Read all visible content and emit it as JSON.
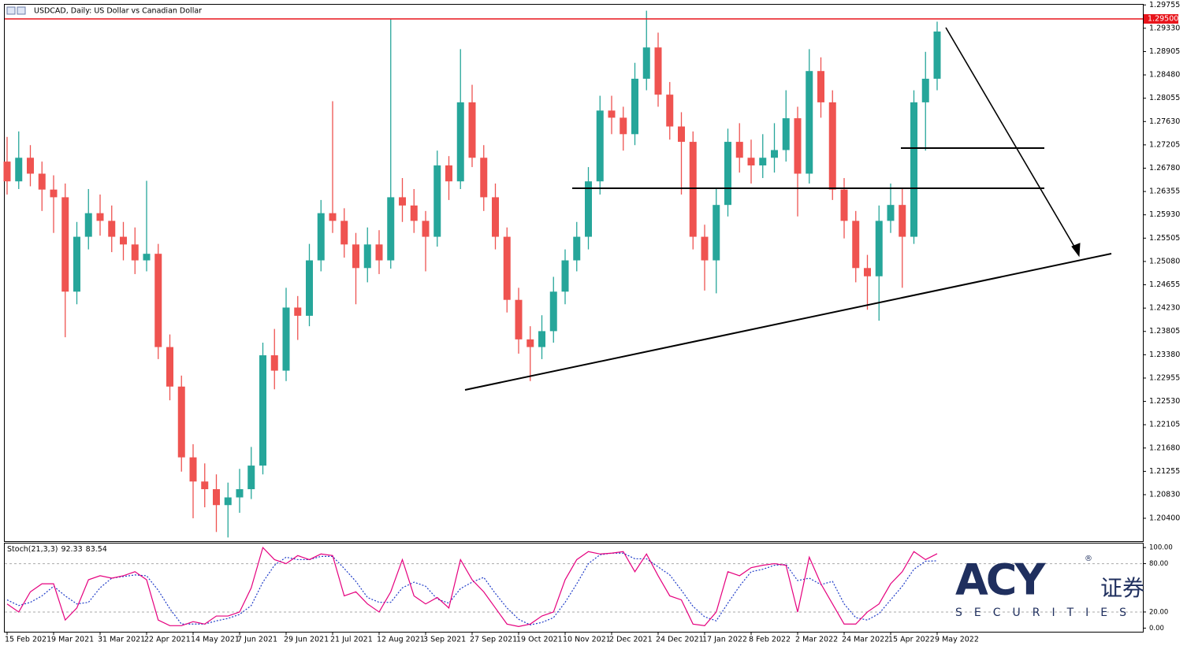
{
  "chart_data": {
    "type": "candlestick",
    "title": "USDCAD, Daily: US Dollar vs Canadian Dollar",
    "categories": [
      "15 Feb 2021",
      null,
      null,
      null,
      "9 Mar 2021",
      null,
      null,
      null,
      "31 Mar 2021",
      null,
      null,
      null,
      "22 Apr 2021",
      null,
      null,
      null,
      "14 May 2021",
      null,
      null,
      null,
      "7 Jun 2021",
      null,
      null,
      null,
      "29 Jun 2021",
      null,
      null,
      null,
      "21 Jul 2021",
      null,
      null,
      null,
      "12 Aug 2021",
      null,
      null,
      null,
      "3 Sep 2021",
      null,
      null,
      null,
      "27 Sep 2021",
      null,
      null,
      null,
      "19 Oct 2021",
      null,
      null,
      null,
      "10 Nov 2021",
      null,
      null,
      null,
      "2 Dec 2021",
      null,
      null,
      null,
      "24 Dec 2021",
      null,
      null,
      null,
      "17 Jan 2022",
      null,
      null,
      null,
      "8 Feb 2022",
      null,
      null,
      null,
      "2 Mar 2022",
      null,
      null,
      null,
      "24 Mar 2022",
      null,
      null,
      null,
      "15 Apr 2022",
      null,
      null,
      null,
      "9 May 2022"
    ],
    "open": [
      1.269,
      1.2654,
      1.2697,
      1.2668,
      1.2639,
      1.2625,
      1.2453,
      1.2553,
      1.2596,
      1.2582,
      1.2553,
      1.2539,
      1.251,
      1.2522,
      1.2352,
      1.228,
      1.2151,
      1.2107,
      1.2093,
      1.2064,
      1.2078,
      1.2093,
      1.2136,
      1.2337,
      1.2309,
      1.2424,
      1.2409,
      1.251,
      1.2596,
      1.2582,
      1.2539,
      1.2496,
      1.2539,
      1.251,
      1.2625,
      1.261,
      1.2582,
      1.2553,
      1.2683,
      1.2654,
      1.2798,
      1.2697,
      1.2625,
      1.2553,
      1.2438,
      1.2366,
      1.2352,
      1.2381,
      1.2453,
      1.251,
      1.2553,
      1.2654,
      1.2783,
      1.277,
      1.274,
      1.2841,
      1.2898,
      1.2812,
      1.2754,
      1.2726,
      1.2553,
      1.251,
      1.2611,
      1.2726,
      1.2697,
      1.2683,
      1.2697,
      1.2711,
      1.2769,
      1.2668,
      1.2855,
      1.2798,
      1.2639,
      1.2582,
      1.2496,
      1.2481,
      1.2582,
      1.2611,
      1.2553,
      1.2798,
      1.2841
    ],
    "high": [
      1.2735,
      1.2745,
      1.272,
      1.269,
      1.2665,
      1.265,
      1.258,
      1.264,
      1.263,
      1.261,
      1.258,
      1.257,
      1.2655,
      1.254,
      1.2375,
      1.23,
      1.2175,
      1.214,
      1.212,
      1.2105,
      1.213,
      1.217,
      1.236,
      1.2385,
      1.246,
      1.2445,
      1.254,
      1.262,
      1.28,
      1.2605,
      1.256,
      1.257,
      1.2565,
      1.295,
      1.266,
      1.264,
      1.26,
      1.271,
      1.27,
      1.2895,
      1.283,
      1.272,
      1.265,
      1.257,
      1.246,
      1.239,
      1.241,
      1.248,
      1.253,
      1.258,
      1.268,
      1.281,
      1.281,
      1.279,
      1.287,
      1.2965,
      1.2925,
      1.2835,
      1.278,
      1.2745,
      1.2575,
      1.264,
      1.275,
      1.276,
      1.273,
      1.274,
      1.276,
      1.282,
      1.279,
      1.2895,
      1.288,
      1.282,
      1.266,
      1.26,
      1.252,
      1.261,
      1.265,
      1.264,
      1.282,
      1.289,
      1.2945
    ],
    "low": [
      1.263,
      1.264,
      1.2645,
      1.26,
      1.256,
      1.237,
      1.243,
      1.253,
      1.2555,
      1.2525,
      1.251,
      1.2485,
      1.249,
      1.233,
      1.2255,
      1.2125,
      1.204,
      1.206,
      1.2015,
      1.2005,
      1.205,
      1.2075,
      1.212,
      1.2275,
      1.229,
      1.2365,
      1.239,
      1.249,
      1.256,
      1.2515,
      1.243,
      1.247,
      1.2485,
      1.2495,
      1.258,
      1.256,
      1.249,
      1.2535,
      1.262,
      1.264,
      1.268,
      1.26,
      1.253,
      1.2415,
      1.234,
      1.229,
      1.233,
      1.236,
      1.243,
      1.249,
      1.253,
      1.263,
      1.274,
      1.271,
      1.272,
      1.282,
      1.279,
      1.273,
      1.263,
      1.253,
      1.2455,
      1.245,
      1.259,
      1.267,
      1.265,
      1.266,
      1.267,
      1.269,
      1.259,
      1.265,
      1.277,
      1.262,
      1.255,
      1.247,
      1.242,
      1.24,
      1.256,
      1.246,
      1.254,
      1.271,
      1.282
    ],
    "close": [
      1.2654,
      1.2697,
      1.2668,
      1.2639,
      1.2625,
      1.2453,
      1.2553,
      1.2596,
      1.2582,
      1.2553,
      1.2539,
      1.251,
      1.2522,
      1.2352,
      1.228,
      1.2151,
      1.2107,
      1.2093,
      1.2064,
      1.2078,
      1.2093,
      1.2136,
      1.2337,
      1.2309,
      1.2424,
      1.2409,
      1.251,
      1.2596,
      1.2582,
      1.2539,
      1.2496,
      1.2539,
      1.251,
      1.2625,
      1.261,
      1.2582,
      1.2553,
      1.2683,
      1.2654,
      1.2798,
      1.2697,
      1.2625,
      1.2553,
      1.2438,
      1.2366,
      1.2352,
      1.2381,
      1.2453,
      1.251,
      1.2553,
      1.2654,
      1.2783,
      1.277,
      1.274,
      1.2841,
      1.2898,
      1.2812,
      1.2754,
      1.2726,
      1.2553,
      1.251,
      1.2611,
      1.2726,
      1.2697,
      1.2683,
      1.2697,
      1.2711,
      1.2769,
      1.2668,
      1.2855,
      1.2798,
      1.2639,
      1.2582,
      1.2496,
      1.2481,
      1.2582,
      1.2611,
      1.2553,
      1.2798,
      1.2841,
      1.2927
    ],
    "up_color": "#26a69a",
    "down_color": "#ef5350",
    "ylim": [
      1.19983,
      1.29773
    ],
    "yticks": [
      {
        "value": 1.29755,
        "label": "1.29755"
      },
      {
        "value": 1.2933,
        "label": "1.29330"
      },
      {
        "value": 1.28905,
        "label": "1.28905"
      },
      {
        "value": 1.2848,
        "label": "1.28480"
      },
      {
        "value": 1.28055,
        "label": "1.28055"
      },
      {
        "value": 1.2763,
        "label": "1.27630"
      },
      {
        "value": 1.27205,
        "label": "1.27205"
      },
      {
        "value": 1.2678,
        "label": "1.26780"
      },
      {
        "value": 1.26355,
        "label": "1.26355"
      },
      {
        "value": 1.2593,
        "label": "1.25930"
      },
      {
        "value": 1.25505,
        "label": "1.25505"
      },
      {
        "value": 1.2508,
        "label": "1.25080"
      },
      {
        "value": 1.24655,
        "label": "1.24655"
      },
      {
        "value": 1.2423,
        "label": "1.24230"
      },
      {
        "value": 1.23805,
        "label": "1.23805"
      },
      {
        "value": 1.2338,
        "label": "1.23380"
      },
      {
        "value": 1.22955,
        "label": "1.22955"
      },
      {
        "value": 1.2253,
        "label": "1.22530"
      },
      {
        "value": 1.22105,
        "label": "1.22105"
      },
      {
        "value": 1.2168,
        "label": "1.21680"
      },
      {
        "value": 1.21255,
        "label": "1.21255"
      },
      {
        "value": 1.2083,
        "label": "1.20830"
      },
      {
        "value": 1.204,
        "label": "1.20400"
      }
    ],
    "level_line": {
      "value": 1.295,
      "label": "1.29500",
      "color": "#e8141b"
    },
    "indicator": {
      "name": "Stoch(21,3,3)",
      "k": [
        30,
        20,
        45,
        55,
        55,
        10,
        25,
        60,
        65,
        62,
        65,
        70,
        60,
        10,
        3,
        3,
        8,
        5,
        15,
        15,
        20,
        50,
        100,
        85,
        80,
        90,
        85,
        92,
        90,
        40,
        45,
        30,
        20,
        45,
        85,
        40,
        30,
        38,
        25,
        85,
        60,
        45,
        25,
        5,
        2,
        5,
        15,
        20,
        60,
        85,
        95,
        92,
        93,
        95,
        70,
        92,
        65,
        40,
        35,
        5,
        3,
        20,
        70,
        65,
        75,
        78,
        80,
        78,
        20,
        88,
        55,
        30,
        5,
        5,
        20,
        30,
        55,
        70,
        95,
        85,
        92.33
      ],
      "d": [
        35,
        28,
        32,
        40,
        52,
        40,
        30,
        32,
        50,
        62,
        64,
        66,
        65,
        47,
        24,
        5,
        5,
        5,
        9,
        12,
        17,
        28,
        57,
        78,
        88,
        85,
        85,
        89,
        89,
        74,
        58,
        38,
        32,
        32,
        50,
        57,
        52,
        36,
        31,
        49,
        57,
        63,
        43,
        25,
        11,
        4,
        7,
        13,
        32,
        55,
        80,
        91,
        93,
        93,
        86,
        86,
        76,
        66,
        47,
        27,
        14,
        9,
        31,
        52,
        70,
        73,
        78,
        79,
        59,
        62,
        54,
        58,
        30,
        13,
        10,
        18,
        35,
        52,
        73,
        83,
        83.54
      ],
      "k_color": "#e5007e",
      "d_color": "#1f3cc8",
      "ylim": [
        -4.5,
        105
      ],
      "yticks": [
        {
          "value": 100,
          "label": "100.00"
        },
        {
          "value": 80,
          "label": "80.00"
        },
        {
          "value": 20,
          "label": "20.00"
        },
        {
          "value": 0,
          "label": "0.00"
        }
      ]
    }
  },
  "logo": {
    "name": "ACY",
    "cn": "证券",
    "sub": "SECURITIES",
    "mark": "®"
  }
}
